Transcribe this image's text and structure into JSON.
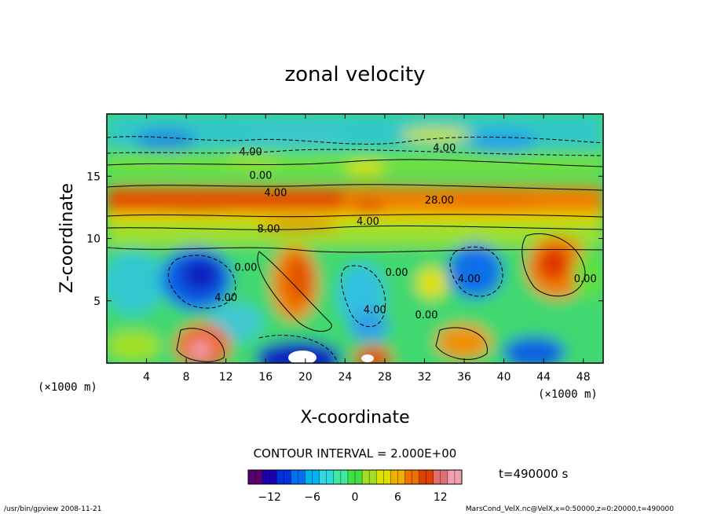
{
  "chart_data": {
    "type": "heatmap",
    "title": "zonal velocity",
    "xlabel": "X-coordinate",
    "ylabel": "Z-coordinate",
    "x_unit_left": "(×1000 m)",
    "x_unit_right": "(×1000 m)",
    "xlim": [
      0,
      50
    ],
    "ylim": [
      0,
      20
    ],
    "x_ticks": [
      4,
      8,
      12,
      16,
      20,
      24,
      28,
      32,
      36,
      40,
      44,
      48
    ],
    "y_ticks": [
      5,
      10,
      15
    ],
    "contour_interval_text": "CONTOUR INTERVAL = 2.000E+00",
    "time_text": "t=490000 s",
    "colorbar": {
      "range": [
        -15,
        15
      ],
      "ticks": [
        -12,
        -6,
        0,
        6,
        12
      ],
      "colors": [
        "#5a0070",
        "#1a00b0",
        "#0030e0",
        "#0070f0",
        "#00b4f0",
        "#30d8e0",
        "#40e8a0",
        "#40e040",
        "#a0e020",
        "#e0e000",
        "#f0b000",
        "#f07000",
        "#e04000",
        "#e07070",
        "#f0a0b0"
      ]
    },
    "contour_labels": [
      {
        "text": "4.00",
        "x": 14.5,
        "y": 16.7
      },
      {
        "text": "4.00",
        "x": 34.0,
        "y": 17.0
      },
      {
        "text": "0.00",
        "x": 15.5,
        "y": 14.8
      },
      {
        "text": "4.00",
        "x": 17.0,
        "y": 13.4
      },
      {
        "text": "28.00",
        "x": 33.5,
        "y": 12.8
      },
      {
        "text": "4.00",
        "x": 26.3,
        "y": 11.1
      },
      {
        "text": "8.00",
        "x": 16.3,
        "y": 10.5
      },
      {
        "text": "0.00",
        "x": 14.0,
        "y": 7.4
      },
      {
        "text": "0.00",
        "x": 29.2,
        "y": 7.0
      },
      {
        "text": "4.00",
        "x": 36.5,
        "y": 6.5
      },
      {
        "text": "0.00",
        "x": 48.2,
        "y": 6.5
      },
      {
        "text": "4.00",
        "x": 12.0,
        "y": 5.0
      },
      {
        "text": "4.00",
        "x": 27.0,
        "y": 4.0
      },
      {
        "text": "0.00",
        "x": 32.2,
        "y": 3.6
      }
    ]
  },
  "footer": {
    "left": "/usr/bin/gpview   2008-11-21",
    "right": "MarsCond_VelX.nc@VelX,x=0:50000,z=0:20000,t=490000"
  }
}
